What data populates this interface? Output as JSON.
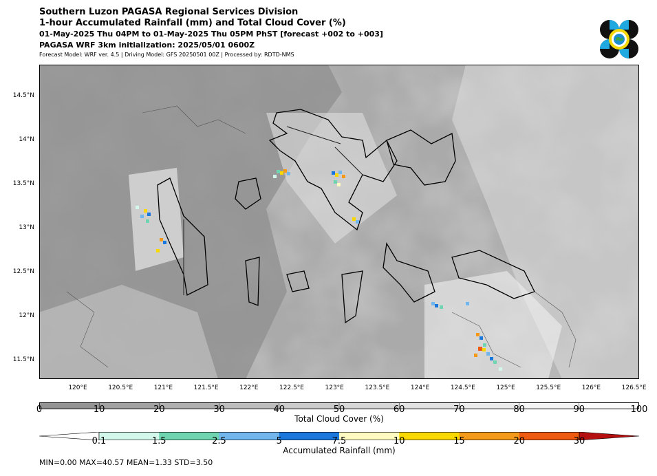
{
  "header": {
    "title_line1": "Southern Luzon PAGASA Regional Services Division",
    "title_line2": "1-hour Accumulated Rainfall (mm) and Total Cloud Cover (%)",
    "title_line3": "01-May-2025 Thu 04PM to 01-May-2025 Thu 05PM PhST [forecast +002 to +003]",
    "title_line4": "PAGASA WRF 3km initialization: 2025/05/01 0600Z",
    "subtitle": "Forecast Model: WRF ver. 4.5 | Driving Model: GFS 20250501 00Z | Processed by: RDTD-NMS"
  },
  "logo": {
    "name": "pagasa-logo-icon"
  },
  "map": {
    "lat_ticks": [
      "14.5°N",
      "14°N",
      "13.5°N",
      "13°N",
      "12.5°N",
      "12°N",
      "11.5°N"
    ],
    "lon_ticks": [
      "120°E",
      "120.5°E",
      "121°E",
      "121.5°E",
      "122°E",
      "122.5°E",
      "123°E",
      "123.5°E",
      "124°E",
      "124.5°E",
      "125°E",
      "125.5°E",
      "126°E",
      "126.5°E"
    ]
  },
  "cloud_colorbar": {
    "title": "Total Cloud Cover (%)",
    "labels": [
      "0",
      "10",
      "20",
      "30",
      "40",
      "50",
      "60",
      "70",
      "80",
      "90",
      "100"
    ],
    "colors": [
      "#949494",
      "#a2a2a2",
      "#b0b0b0",
      "#bebebe",
      "#cbcbcb",
      "#d7d7d7",
      "#e2e2e2",
      "#ececec",
      "#f5f5f5",
      "#fbfbfb"
    ]
  },
  "rain_colorbar": {
    "title": "Accumulated Rainfall (mm)",
    "labels": [
      "0.1",
      "1.5",
      "2.5",
      "5",
      "7.5",
      "10",
      "15",
      "20",
      "30"
    ],
    "colors": [
      "#ffffff",
      "#d4f7ec",
      "#6fd5b0",
      "#72b6ee",
      "#1a78dc",
      "#fffbc0",
      "#f8d800",
      "#f39a18",
      "#ef5a12",
      "#b41010"
    ]
  },
  "stats": "MIN=0.00   MAX=40.57   MEAN=1.33   STD=3.50"
}
